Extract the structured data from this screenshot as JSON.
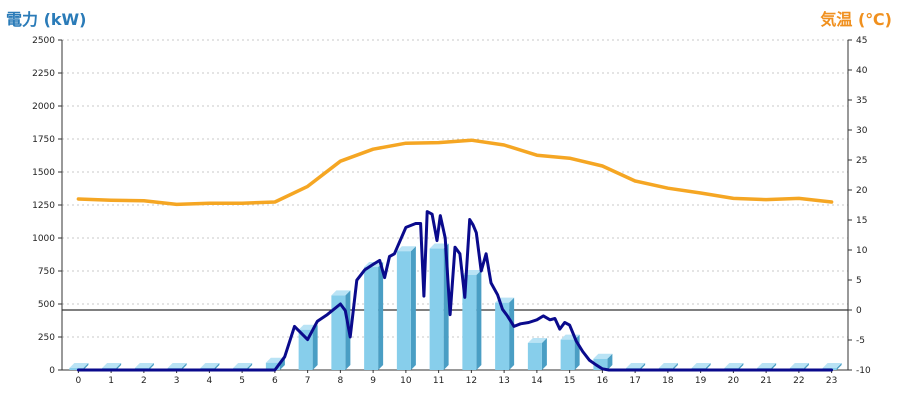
{
  "chart_data": {
    "type": "bar",
    "title_left": "電力 (kW)",
    "title_right": "気温 (℃)",
    "categories": [
      "0",
      "1",
      "2",
      "3",
      "4",
      "5",
      "6",
      "7",
      "8",
      "9",
      "10",
      "11",
      "12",
      "13",
      "14",
      "15",
      "16",
      "17",
      "18",
      "19",
      "20",
      "21",
      "22",
      "23"
    ],
    "y_left": {
      "min": 0,
      "max": 2500,
      "ticks": [
        0,
        250,
        500,
        750,
        1000,
        1250,
        1500,
        1750,
        2000,
        2250,
        2500
      ]
    },
    "y_right": {
      "min": -10,
      "max": 45,
      "ticks": [
        -10,
        -5,
        0,
        5,
        10,
        15,
        20,
        25,
        30,
        35,
        40,
        45
      ]
    },
    "grid": true,
    "series": [
      {
        "kind": "bar3d",
        "axis": "left",
        "color": "#87ceeb",
        "values": [
          15,
          15,
          15,
          15,
          15,
          15,
          55,
          305,
          565,
          780,
          900,
          920,
          720,
          510,
          205,
          230,
          85,
          15,
          15,
          15,
          15,
          15,
          15,
          15
        ]
      },
      {
        "kind": "line",
        "axis": "left",
        "color": "#0a0a8c",
        "x": [
          0,
          6,
          6.3,
          6.6,
          7,
          7.3,
          7.6,
          8,
          8.15,
          8.3,
          8.5,
          8.75,
          9,
          9.2,
          9.35,
          9.5,
          9.65,
          10,
          10.3,
          10.45,
          10.55,
          10.65,
          10.8,
          10.95,
          11.05,
          11.2,
          11.35,
          11.5,
          11.65,
          11.8,
          11.95,
          12.05,
          12.15,
          12.3,
          12.45,
          12.6,
          12.8,
          12.95,
          13.1,
          13.3,
          13.5,
          13.75,
          14,
          14.2,
          14.4,
          14.55,
          14.7,
          14.85,
          15,
          15.2,
          15.4,
          15.6,
          15.8,
          16,
          16.2,
          16.5,
          17,
          18,
          19,
          20,
          21,
          22,
          23
        ],
        "y": [
          0,
          0,
          100,
          330,
          230,
          370,
          420,
          500,
          450,
          250,
          680,
          760,
          800,
          830,
          700,
          860,
          880,
          1080,
          1110,
          1110,
          560,
          1200,
          1180,
          980,
          1170,
          1000,
          420,
          930,
          880,
          550,
          1140,
          1100,
          1040,
          750,
          880,
          660,
          570,
          460,
          410,
          330,
          350,
          360,
          380,
          410,
          380,
          390,
          310,
          360,
          340,
          220,
          140,
          75,
          40,
          8,
          0,
          0,
          0,
          0,
          0,
          0,
          0,
          0,
          0
        ]
      },
      {
        "kind": "line",
        "axis": "right",
        "color": "#f5a623",
        "x": [
          0,
          1,
          2,
          3,
          4,
          5,
          6,
          7,
          8,
          9,
          10,
          11,
          12,
          13,
          14,
          15,
          16,
          17,
          18,
          19,
          20,
          21,
          22,
          23
        ],
        "y": [
          18.5,
          18.3,
          18.2,
          17.6,
          17.8,
          17.8,
          18.0,
          20.6,
          24.8,
          26.8,
          27.8,
          27.9,
          28.3,
          27.5,
          25.8,
          25.3,
          24.0,
          21.5,
          20.3,
          19.5,
          18.6,
          18.4,
          18.6,
          18.0
        ]
      }
    ]
  }
}
